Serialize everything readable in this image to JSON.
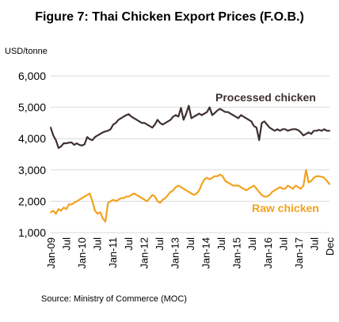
{
  "chart_data": {
    "type": "line",
    "title": "Figure 7: Thai Chicken Export Prices (F.O.B.)",
    "ylabel": "USD/tonne",
    "source": "Source: Ministry of Commerce (MOC)",
    "ylim": [
      1000,
      6000
    ],
    "y_ticks": [
      1000,
      2000,
      3000,
      4000,
      5000,
      6000
    ],
    "y_tick_labels": [
      "1,000",
      "2,000",
      "3,000",
      "4,000",
      "5,000",
      "6,000"
    ],
    "x_tick_labels": [
      "Jan-09",
      "Jul",
      "Jan-10",
      "Jul",
      "Jan-11",
      "Jul",
      "Jan-12",
      "Jul",
      "Jan-13",
      "Jul",
      "Jan-14",
      "Jul",
      "Jan-15",
      "Jul",
      "Jan-16",
      "Jul",
      "Jan-17",
      "Jul",
      "Dec"
    ],
    "grid": "horizontal",
    "colors": {
      "processed": "#3f3130",
      "raw": "#f2a21d",
      "grid": "#d9d9d9"
    },
    "series": [
      {
        "name": "Processed chicken",
        "color": "#3f3130",
        "values": [
          4350,
          4100,
          3950,
          3700,
          3750,
          3850,
          3850,
          3870,
          3880,
          3800,
          3850,
          3800,
          3780,
          3820,
          4050,
          3980,
          3950,
          4050,
          4100,
          4150,
          4200,
          4230,
          4250,
          4300,
          4450,
          4500,
          4600,
          4650,
          4700,
          4750,
          4780,
          4700,
          4650,
          4600,
          4550,
          4500,
          4500,
          4450,
          4400,
          4350,
          4450,
          4600,
          4500,
          4450,
          4500,
          4550,
          4600,
          4700,
          4750,
          4700,
          4980,
          4600,
          4800,
          5050,
          4650,
          4700,
          4750,
          4800,
          4750,
          4800,
          4850,
          5000,
          4750,
          4820,
          4900,
          4950,
          4900,
          4850,
          4850,
          4800,
          4750,
          4700,
          4650,
          4750,
          4700,
          4650,
          4600,
          4550,
          4400,
          4350,
          3950,
          4500,
          4550,
          4450,
          4350,
          4300,
          4250,
          4300,
          4250,
          4300,
          4300,
          4250,
          4280,
          4300,
          4300,
          4270,
          4200,
          4100,
          4150,
          4200,
          4150,
          4250,
          4250,
          4280,
          4250,
          4300,
          4250,
          4250
        ]
      },
      {
        "name": "Raw chicken",
        "color": "#f2a21d",
        "values": [
          1650,
          1700,
          1600,
          1750,
          1700,
          1800,
          1750,
          1900,
          1900,
          1950,
          2000,
          2050,
          2100,
          2150,
          2200,
          2250,
          2000,
          1700,
          1600,
          1650,
          1450,
          1350,
          1950,
          2000,
          2050,
          2000,
          2050,
          2100,
          2100,
          2150,
          2150,
          2200,
          2250,
          2200,
          2150,
          2100,
          2050,
          2000,
          2100,
          2200,
          2150,
          2000,
          1950,
          2050,
          2100,
          2200,
          2300,
          2350,
          2450,
          2500,
          2450,
          2400,
          2350,
          2300,
          2250,
          2200,
          2250,
          2350,
          2550,
          2700,
          2750,
          2700,
          2750,
          2800,
          2800,
          2850,
          2800,
          2650,
          2600,
          2550,
          2500,
          2500,
          2500,
          2450,
          2400,
          2350,
          2400,
          2450,
          2500,
          2400,
          2300,
          2200,
          2150,
          2150,
          2200,
          2300,
          2350,
          2400,
          2450,
          2400,
          2400,
          2500,
          2450,
          2400,
          2500,
          2450,
          2400,
          2500,
          3000,
          2600,
          2650,
          2750,
          2800,
          2800,
          2780,
          2750,
          2650,
          2550
        ]
      }
    ]
  }
}
